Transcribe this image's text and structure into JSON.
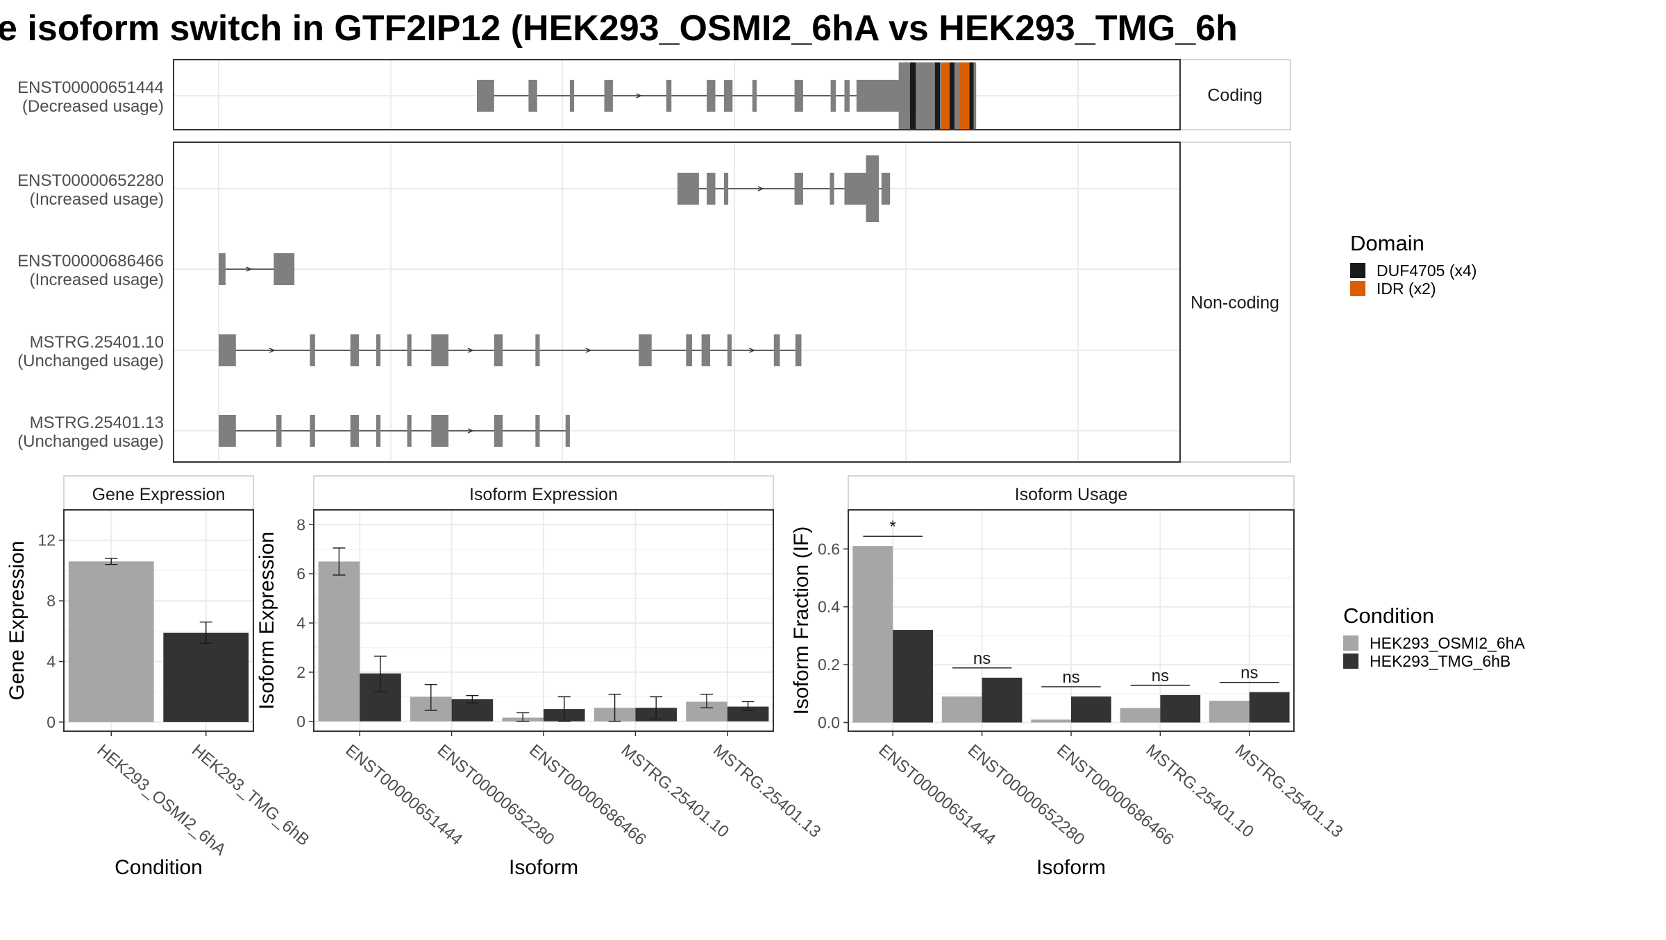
{
  "title": "e isoform switch in GTF2IP12 (HEK293_OSMI2_6hA vs HEK293_TMG_6h",
  "colors": {
    "exon": "#7f7f7f",
    "duf": "#1a1a1a",
    "idr": "#d95f02",
    "cond1": "#a6a6a6",
    "cond2": "#333333",
    "grid": "#ebebeb",
    "frame": "#333333"
  },
  "legend_domain": {
    "title": "Domain",
    "items": [
      {
        "label": "DUF4705 (x4)",
        "color": "#1a1a1a"
      },
      {
        "label": "IDR (x2)",
        "color": "#d95f02"
      }
    ]
  },
  "legend_condition": {
    "title": "Condition",
    "items": [
      {
        "label": "HEK293_OSMI2_6hA",
        "color": "#a6a6a6"
      },
      {
        "label": "HEK293_TMG_6hB",
        "color": "#333333"
      }
    ]
  },
  "chart_data": [
    {
      "type": "gene-structure",
      "facets": [
        "Coding",
        "Non-coding"
      ],
      "genome_range": [
        0,
        1000
      ],
      "transcripts": [
        {
          "facet": "Coding",
          "id": "ENST00000651444",
          "usage": "(Decreased usage)",
          "exons": [
            [
              300,
              320
            ],
            [
              360,
              370
            ],
            [
              408,
              413
            ],
            [
              448,
              458
            ],
            [
              520,
              526
            ],
            [
              567,
              577
            ],
            [
              587,
              597
            ],
            [
              620,
              625
            ],
            [
              669,
              679
            ],
            [
              711,
              717
            ],
            [
              727,
              733
            ],
            [
              741,
              822
            ]
          ],
          "domains": [
            [
              803,
              810,
              "DUF4705"
            ],
            [
              832,
              838,
              "DUF4705"
            ],
            [
              849,
              855,
              "DUF4705"
            ],
            [
              872,
              877,
              "DUF4705"
            ],
            [
              840,
              849,
              "IDR"
            ],
            [
              860,
              872,
              "IDR"
            ]
          ]
        },
        {
          "facet": "Non-coding",
          "id": "ENST00000652280",
          "usage": "(Increased usage)",
          "exons": [
            [
              533,
              558
            ],
            [
              567,
              577
            ],
            [
              587,
              592
            ],
            [
              669,
              679
            ],
            [
              710,
              715
            ],
            [
              727,
              767
            ],
            [
              770,
              780
            ]
          ]
        },
        {
          "facet": "Non-coding",
          "id": "ENST00000686466",
          "usage": "(Increased usage)",
          "exons": [
            [
              0,
              8
            ],
            [
              64,
              88
            ]
          ]
        },
        {
          "facet": "Non-coding",
          "id": "MSTRG.25401.10",
          "usage": "(Unchanged usage)",
          "exons": [
            [
              0,
              20
            ],
            [
              106,
              112
            ],
            [
              153,
              163
            ],
            [
              183,
              188
            ],
            [
              219,
              224
            ],
            [
              247,
              267
            ],
            [
              320,
              330
            ],
            [
              368,
              373
            ],
            [
              488,
              503
            ],
            [
              543,
              550
            ],
            [
              561,
              571
            ],
            [
              591,
              596
            ],
            [
              645,
              652
            ],
            [
              670,
              677
            ]
          ]
        },
        {
          "facet": "Non-coding",
          "id": "MSTRG.25401.13",
          "usage": "(Unchanged usage)",
          "exons": [
            [
              0,
              20
            ],
            [
              67,
              73
            ],
            [
              106,
              112
            ],
            [
              153,
              163
            ],
            [
              183,
              188
            ],
            [
              219,
              224
            ],
            [
              247,
              267
            ],
            [
              320,
              330
            ],
            [
              368,
              373
            ],
            [
              403,
              408
            ]
          ]
        }
      ]
    },
    {
      "type": "bar",
      "title": "Gene Expression",
      "xlabel": "Condition",
      "ylabel": "Gene Expression",
      "ylim": [
        -0.6,
        14
      ],
      "yticks": [
        0,
        4,
        8,
        12
      ],
      "categories": [
        "HEK293_OSMI2_6hA",
        "HEK293_TMG_6hB"
      ],
      "series": [
        {
          "name": "",
          "values": [
            10.6,
            5.9
          ],
          "err": [
            [
              10.4,
              10.8
            ],
            [
              5.2,
              6.6
            ]
          ]
        }
      ]
    },
    {
      "type": "bar",
      "title": "Isoform Expression",
      "xlabel": "Isoform",
      "ylabel": "Isoform Expression",
      "ylim": [
        -0.4,
        8.6
      ],
      "yticks": [
        0,
        2,
        4,
        6,
        8
      ],
      "categories": [
        "ENST00000651444",
        "ENST00000652280",
        "ENST00000686466",
        "MSTRG.25401.10",
        "MSTRG.25401.13"
      ],
      "series": [
        {
          "name": "HEK293_OSMI2_6hA",
          "values": [
            6.5,
            1.0,
            0.15,
            0.55,
            0.8
          ],
          "err": [
            [
              5.95,
              7.05
            ],
            [
              0.45,
              1.5
            ],
            [
              0.0,
              0.35
            ],
            [
              0.0,
              1.1
            ],
            [
              0.55,
              1.1
            ]
          ]
        },
        {
          "name": "HEK293_TMG_6hB",
          "values": [
            1.95,
            0.9,
            0.5,
            0.55,
            0.6
          ],
          "err": [
            [
              1.2,
              2.65
            ],
            [
              0.75,
              1.05
            ],
            [
              0.0,
              1.0
            ],
            [
              0.1,
              1.0
            ],
            [
              0.45,
              0.8
            ]
          ]
        }
      ]
    },
    {
      "type": "bar",
      "title": "Isoform Usage",
      "xlabel": "Isoform",
      "ylabel": "Isoform Fraction (IF)",
      "ylim": [
        -0.03,
        0.735
      ],
      "yticks": [
        0.0,
        0.2,
        0.4,
        0.6
      ],
      "ytick_labels": [
        "0.0",
        "0.2",
        "0.4",
        "0.6"
      ],
      "categories": [
        "ENST00000651444",
        "ENST00000652280",
        "ENST00000686466",
        "MSTRG.25401.10",
        "MSTRG.25401.13"
      ],
      "series": [
        {
          "name": "HEK293_OSMI2_6hA",
          "values": [
            0.61,
            0.09,
            0.01,
            0.05,
            0.075
          ]
        },
        {
          "name": "HEK293_TMG_6hB",
          "values": [
            0.32,
            0.155,
            0.09,
            0.095,
            0.105
          ]
        }
      ],
      "significance": [
        "*",
        "ns",
        "ns",
        "ns",
        "ns"
      ]
    }
  ]
}
